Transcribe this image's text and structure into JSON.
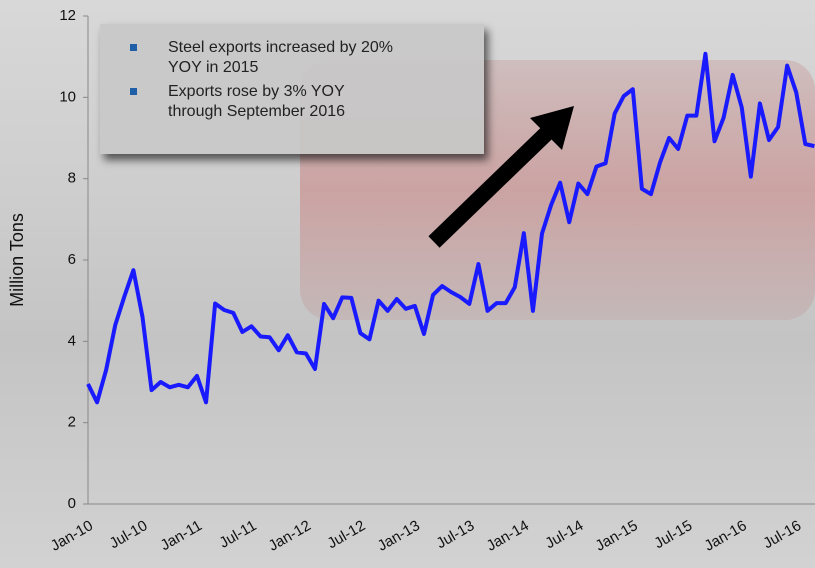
{
  "chart_data": {
    "type": "line",
    "ylabel": "Million Tons",
    "categories": [
      "Jan-10",
      null,
      null,
      null,
      null,
      null,
      "Jul-10",
      null,
      null,
      null,
      null,
      null,
      "Jan-11",
      null,
      null,
      null,
      null,
      null,
      "Jul-11",
      null,
      null,
      null,
      null,
      null,
      "Jan-12",
      null,
      null,
      null,
      null,
      null,
      "Jul-12",
      null,
      null,
      null,
      null,
      null,
      "Jan-13",
      null,
      null,
      null,
      null,
      null,
      "Jul-13",
      null,
      null,
      null,
      null,
      null,
      "Jan-14",
      null,
      null,
      null,
      null,
      null,
      "Jul-14",
      null,
      null,
      null,
      null,
      null,
      "Jan-15",
      null,
      null,
      null,
      null,
      null,
      "Jul-15",
      null,
      null,
      null,
      null,
      null,
      "Jan-16",
      null,
      null,
      null,
      null,
      null,
      "Jul-16",
      null,
      null
    ],
    "values": [
      2.95,
      2.5,
      3.3,
      4.4,
      5.1,
      5.75,
      4.6,
      2.8,
      3.0,
      2.87,
      2.93,
      2.87,
      3.15,
      2.5,
      4.93,
      4.77,
      4.7,
      4.23,
      4.37,
      4.12,
      4.1,
      3.78,
      4.15,
      3.73,
      3.7,
      3.32,
      4.92,
      4.57,
      5.08,
      5.07,
      4.2,
      4.05,
      5.0,
      4.75,
      5.04,
      4.8,
      4.87,
      4.18,
      5.14,
      5.36,
      5.21,
      5.09,
      4.92,
      5.9,
      4.75,
      4.94,
      4.94,
      5.33,
      6.66,
      4.75,
      6.65,
      7.35,
      7.9,
      6.93,
      7.88,
      7.62,
      8.3,
      8.38,
      9.6,
      10.03,
      10.2,
      7.75,
      7.62,
      8.4,
      9.0,
      8.73,
      9.55,
      9.55,
      11.07,
      8.92,
      9.5,
      10.55,
      9.75,
      8.05,
      9.85,
      8.95,
      9.27,
      10.78,
      10.12,
      8.85,
      8.8
    ],
    "color": "#1a1aff",
    "ylim": [
      0,
      12
    ],
    "yticks": [
      0,
      2,
      4,
      6,
      8,
      10,
      12
    ],
    "annotations": [
      "Steel exports increased by 20% YOY in 2015",
      "Exports rose by 3% YOY through September 2016"
    ]
  }
}
